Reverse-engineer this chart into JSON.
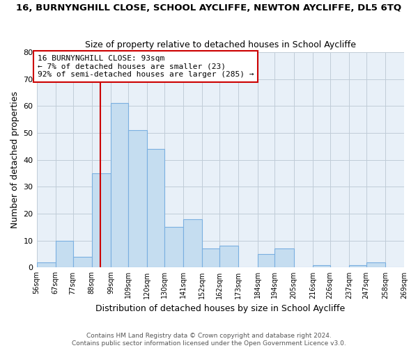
{
  "title": "16, BURNYNGHILL CLOSE, SCHOOL AYCLIFFE, NEWTON AYCLIFFE, DL5 6TQ",
  "subtitle": "Size of property relative to detached houses in School Aycliffe",
  "xlabel": "Distribution of detached houses by size in School Aycliffe",
  "ylabel": "Number of detached properties",
  "bin_labels": [
    "56sqm",
    "67sqm",
    "77sqm",
    "88sqm",
    "99sqm",
    "109sqm",
    "120sqm",
    "130sqm",
    "141sqm",
    "152sqm",
    "162sqm",
    "173sqm",
    "184sqm",
    "194sqm",
    "205sqm",
    "216sqm",
    "226sqm",
    "237sqm",
    "247sqm",
    "258sqm",
    "269sqm"
  ],
  "bar_heights": [
    2,
    10,
    4,
    35,
    61,
    51,
    44,
    15,
    18,
    7,
    8,
    0,
    5,
    7,
    0,
    1,
    0,
    1,
    2,
    0
  ],
  "bar_color": "#c5ddf0",
  "bar_edge_color": "#7aafe0",
  "property_line_x": 93,
  "vline_color": "#cc0000",
  "annotation_text": "16 BURNYNGHILL CLOSE: 93sqm\n← 7% of detached houses are smaller (23)\n92% of semi-detached houses are larger (285) →",
  "annotation_box_color": "#ffffff",
  "annotation_box_edge": "#cc0000",
  "ylim": [
    0,
    80
  ],
  "yticks": [
    0,
    10,
    20,
    30,
    40,
    50,
    60,
    70,
    80
  ],
  "footer": "Contains HM Land Registry data © Crown copyright and database right 2024.\nContains public sector information licensed under the Open Government Licence v3.0.",
  "bg_color": "#ffffff",
  "plot_bg_color": "#e8f0f8",
  "grid_color": "#c0ccd8"
}
